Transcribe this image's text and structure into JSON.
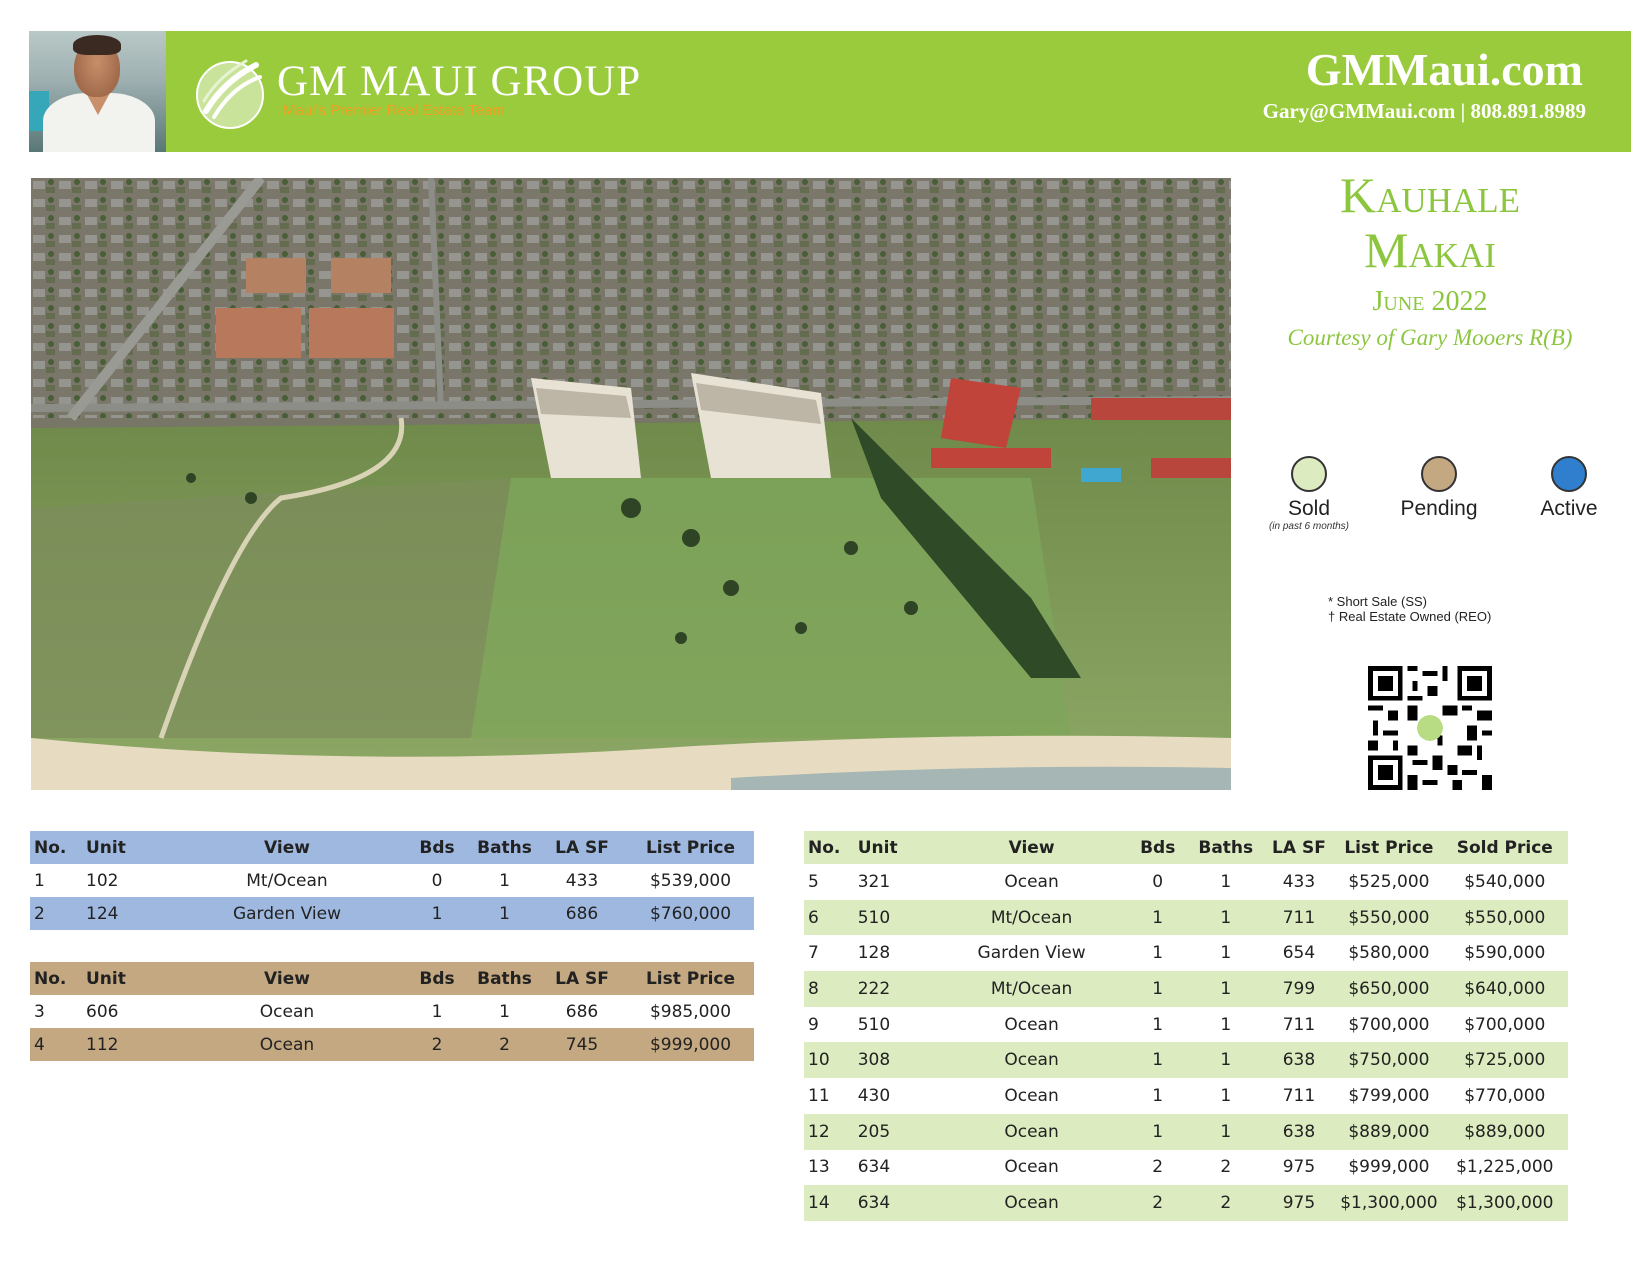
{
  "header": {
    "brand": "GM MAUI GROUP",
    "tagline": "Maui's Premier Real Estate Team",
    "website": "GMMaui.com",
    "contact": "Gary@GMMaui.com | 808.891.8989",
    "colors": {
      "banner": "#9acb3c",
      "tagline": "#f0a020"
    }
  },
  "report": {
    "title_line1": "Kauhale",
    "title_line2": "Makai",
    "month": "June 2022",
    "courtesy": "Courtesy of Gary Mooers R(B)",
    "title_color": "#8cc63f"
  },
  "legend": {
    "sold": {
      "label": "Sold",
      "sub": "(in past 6 months)",
      "color": "#dcebc0"
    },
    "pending": {
      "label": "Pending",
      "color": "#c4a882"
    },
    "active": {
      "label": "Active",
      "color": "#2f7fce"
    }
  },
  "notes": {
    "short_sale": "* Short Sale (SS)",
    "reo": "† Real Estate Owned (REO)"
  },
  "active": {
    "headers": {
      "no": "No.",
      "unit": "Unit",
      "view": "View",
      "bds": "Bds",
      "baths": "Baths",
      "lasf": "LA SF",
      "list": "List Price"
    },
    "rows": [
      {
        "no": "1",
        "unit": "102",
        "view": "Mt/Ocean",
        "bds": "0",
        "baths": "1",
        "lasf": "433",
        "list": "$539,000"
      },
      {
        "no": "2",
        "unit": "124",
        "view": "Garden View",
        "bds": "1",
        "baths": "1",
        "lasf": "686",
        "list": "$760,000"
      }
    ]
  },
  "pending": {
    "headers": {
      "no": "No.",
      "unit": "Unit",
      "view": "View",
      "bds": "Bds",
      "baths": "Baths",
      "lasf": "LA SF",
      "list": "List Price"
    },
    "rows": [
      {
        "no": "3",
        "unit": "606",
        "view": "Ocean",
        "bds": "1",
        "baths": "1",
        "lasf": "686",
        "list": "$985,000"
      },
      {
        "no": "4",
        "unit": "112",
        "view": "Ocean",
        "bds": "2",
        "baths": "2",
        "lasf": "745",
        "list": "$999,000"
      }
    ]
  },
  "sold": {
    "headers": {
      "no": "No.",
      "unit": "Unit",
      "view": "View",
      "bds": "Bds",
      "baths": "Baths",
      "lasf": "LA SF",
      "list": "List Price",
      "sold": "Sold Price"
    },
    "rows": [
      {
        "no": "5",
        "unit": "321",
        "view": "Ocean",
        "bds": "0",
        "baths": "1",
        "lasf": "433",
        "list": "$525,000",
        "sold": "$540,000"
      },
      {
        "no": "6",
        "unit": "510",
        "view": "Mt/Ocean",
        "bds": "1",
        "baths": "1",
        "lasf": "711",
        "list": "$550,000",
        "sold": "$550,000"
      },
      {
        "no": "7",
        "unit": "128",
        "view": "Garden View",
        "bds": "1",
        "baths": "1",
        "lasf": "654",
        "list": "$580,000",
        "sold": "$590,000"
      },
      {
        "no": "8",
        "unit": "222",
        "view": "Mt/Ocean",
        "bds": "1",
        "baths": "1",
        "lasf": "799",
        "list": "$650,000",
        "sold": "$640,000"
      },
      {
        "no": "9",
        "unit": "510",
        "view": "Ocean",
        "bds": "1",
        "baths": "1",
        "lasf": "711",
        "list": "$700,000",
        "sold": "$700,000"
      },
      {
        "no": "10",
        "unit": "308",
        "view": "Ocean",
        "bds": "1",
        "baths": "1",
        "lasf": "638",
        "list": "$750,000",
        "sold": "$725,000"
      },
      {
        "no": "11",
        "unit": "430",
        "view": "Ocean",
        "bds": "1",
        "baths": "1",
        "lasf": "711",
        "list": "$799,000",
        "sold": "$770,000"
      },
      {
        "no": "12",
        "unit": "205",
        "view": "Ocean",
        "bds": "1",
        "baths": "1",
        "lasf": "638",
        "list": "$889,000",
        "sold": "$889,000"
      },
      {
        "no": "13",
        "unit": "634",
        "view": "Ocean",
        "bds": "2",
        "baths": "2",
        "lasf": "975",
        "list": "$999,000",
        "sold": "$1,225,000"
      },
      {
        "no": "14",
        "unit": "634",
        "view": "Ocean",
        "bds": "2",
        "baths": "2",
        "lasf": "975",
        "list": "$1,300,000",
        "sold": "$1,300,000"
      }
    ]
  }
}
